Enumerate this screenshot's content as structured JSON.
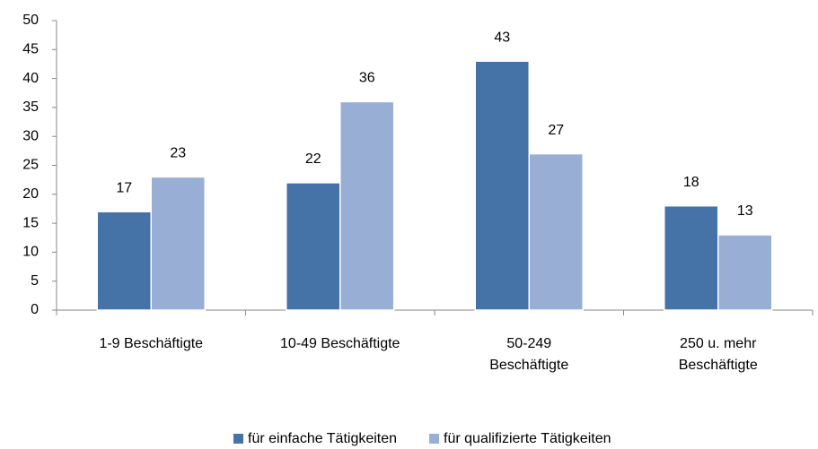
{
  "chart_data": {
    "type": "bar",
    "categories": [
      "1-9 Beschäftigte",
      "10-49 Beschäftigte",
      "50-249 Beschäftigte",
      "250 u. mehr Beschäftigte"
    ],
    "series": [
      {
        "name": "für einfache Tätigkeiten",
        "color": "#4572a7",
        "values": [
          17,
          22,
          43,
          18
        ]
      },
      {
        "name": "für qualifizierte Tätigkeiten",
        "color": "#98aed5",
        "values": [
          23,
          36,
          27,
          13
        ]
      }
    ],
    "ylim": [
      0,
      50
    ],
    "yticks": [
      0,
      5,
      10,
      15,
      20,
      25,
      30,
      35,
      40,
      45,
      50
    ],
    "grid": false,
    "legend": "bottom"
  }
}
